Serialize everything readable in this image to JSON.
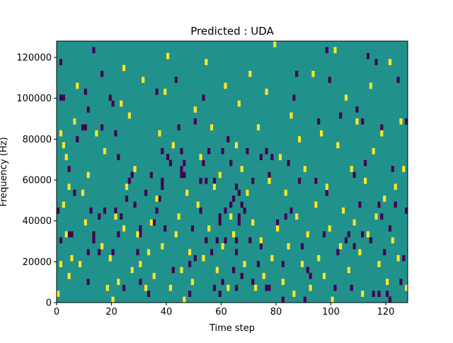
{
  "chart_data": {
    "type": "heatmap",
    "title": "Predicted : UDA",
    "xlabel": "Time step",
    "ylabel": "Frequency (Hz)",
    "xlim": [
      0,
      128
    ],
    "ylim": [
      0,
      128000
    ],
    "xticks": [
      0,
      20,
      40,
      60,
      80,
      100,
      120
    ],
    "yticks": [
      0,
      20000,
      40000,
      60000,
      80000,
      100000,
      120000
    ],
    "xtick_labels": [
      "0",
      "20",
      "40",
      "60",
      "80",
      "100",
      "120"
    ],
    "ytick_labels": [
      "0",
      "20000",
      "40000",
      "60000",
      "80000",
      "100000",
      "120000"
    ],
    "grid": false,
    "n_time_steps": 128,
    "n_freq_bins": 44,
    "freq_bin_width_hz": 2909,
    "colors": {
      "background_class": "#21918c",
      "low_class": "#440154",
      "high_class": "#fde725"
    },
    "low_cells": [
      [
        0,
        15
      ],
      [
        1,
        10
      ],
      [
        1,
        34
      ],
      [
        1,
        40
      ],
      [
        2,
        34
      ],
      [
        4,
        11
      ],
      [
        4,
        22
      ],
      [
        5,
        11
      ],
      [
        6,
        18
      ],
      [
        7,
        27
      ],
      [
        9,
        29
      ],
      [
        10,
        29
      ],
      [
        10,
        35
      ],
      [
        11,
        3
      ],
      [
        11,
        8
      ],
      [
        11,
        32
      ],
      [
        12,
        15
      ],
      [
        13,
        10
      ],
      [
        13,
        11
      ],
      [
        13,
        42
      ],
      [
        15,
        8
      ],
      [
        15,
        14
      ],
      [
        16,
        29
      ],
      [
        16,
        38
      ],
      [
        17,
        15
      ],
      [
        19,
        34
      ],
      [
        20,
        8
      ],
      [
        20,
        33
      ],
      [
        21,
        15
      ],
      [
        21,
        28
      ],
      [
        22,
        11
      ],
      [
        22,
        24
      ],
      [
        23,
        14
      ],
      [
        24,
        2
      ],
      [
        25,
        17
      ],
      [
        26,
        20
      ],
      [
        27,
        21
      ],
      [
        28,
        16
      ],
      [
        29,
        8
      ],
      [
        30,
        3
      ],
      [
        30,
        11
      ],
      [
        30,
        12
      ],
      [
        32,
        18
      ],
      [
        33,
        1
      ],
      [
        34,
        21
      ],
      [
        35,
        13
      ],
      [
        36,
        15
      ],
      [
        36,
        35
      ],
      [
        37,
        17
      ],
      [
        38,
        19
      ],
      [
        38,
        20
      ],
      [
        38,
        25
      ],
      [
        39,
        12
      ],
      [
        40,
        24
      ],
      [
        41,
        23
      ],
      [
        42,
        5
      ],
      [
        43,
        37
      ],
      [
        44,
        29
      ],
      [
        45,
        21
      ],
      [
        45,
        22
      ],
      [
        45,
        25
      ],
      [
        46,
        21
      ],
      [
        46,
        23
      ],
      [
        48,
        1
      ],
      [
        48,
        6
      ],
      [
        49,
        12
      ],
      [
        50,
        7
      ],
      [
        50,
        30
      ],
      [
        52,
        15
      ],
      [
        52,
        20
      ],
      [
        53,
        23
      ],
      [
        53,
        34
      ],
      [
        54,
        10
      ],
      [
        54,
        20
      ],
      [
        55,
        25
      ],
      [
        56,
        8
      ],
      [
        57,
        2
      ],
      [
        57,
        20
      ],
      [
        58,
        10
      ],
      [
        59,
        1
      ],
      [
        59,
        13
      ],
      [
        59,
        14
      ],
      [
        60,
        3
      ],
      [
        60,
        25
      ],
      [
        61,
        10
      ],
      [
        61,
        15
      ],
      [
        62,
        27
      ],
      [
        63,
        16
      ],
      [
        63,
        23
      ],
      [
        64,
        5
      ],
      [
        64,
        17
      ],
      [
        65,
        2
      ],
      [
        65,
        8
      ],
      [
        65,
        10
      ],
      [
        65,
        19
      ],
      [
        66,
        13
      ],
      [
        66,
        14
      ],
      [
        66,
        18
      ],
      [
        67,
        4
      ],
      [
        67,
        16
      ],
      [
        68,
        15
      ],
      [
        69,
        25
      ],
      [
        70,
        10
      ],
      [
        71,
        3
      ],
      [
        71,
        20
      ],
      [
        73,
        6
      ],
      [
        74,
        9
      ],
      [
        74,
        24
      ],
      [
        76,
        2
      ],
      [
        76,
        25
      ],
      [
        77,
        2
      ],
      [
        77,
        21
      ],
      [
        78,
        24
      ],
      [
        80,
        13
      ],
      [
        82,
        0
      ],
      [
        82,
        6
      ],
      [
        83,
        14
      ],
      [
        84,
        23
      ],
      [
        85,
        15
      ],
      [
        86,
        34
      ],
      [
        87,
        38
      ],
      [
        88,
        20
      ],
      [
        89,
        9
      ],
      [
        90,
        0
      ],
      [
        91,
        5
      ],
      [
        92,
        4
      ],
      [
        94,
        20
      ],
      [
        95,
        30
      ],
      [
        97,
        11
      ],
      [
        98,
        18
      ],
      [
        98,
        42
      ],
      [
        99,
        37
      ],
      [
        101,
        2
      ],
      [
        102,
        8
      ],
      [
        103,
        31
      ],
      [
        105,
        10
      ],
      [
        106,
        11
      ],
      [
        107,
        2
      ],
      [
        108,
        9
      ],
      [
        108,
        21
      ],
      [
        109,
        32
      ],
      [
        110,
        16
      ],
      [
        111,
        11
      ],
      [
        111,
        30
      ],
      [
        112,
        23
      ],
      [
        113,
        41
      ],
      [
        114,
        10
      ],
      [
        115,
        1
      ],
      [
        116,
        40
      ],
      [
        117,
        1
      ],
      [
        117,
        16
      ],
      [
        118,
        14
      ],
      [
        118,
        29
      ],
      [
        119,
        8
      ],
      [
        120,
        1
      ],
      [
        121,
        0
      ],
      [
        121,
        12
      ],
      [
        122,
        22
      ],
      [
        123,
        16
      ],
      [
        124,
        37
      ],
      [
        125,
        3
      ],
      [
        126,
        7
      ],
      [
        127,
        15
      ],
      [
        127,
        30
      ]
    ],
    "high_cells": [
      [
        0,
        1
      ],
      [
        1,
        6
      ],
      [
        1,
        28
      ],
      [
        2,
        26
      ],
      [
        2,
        16
      ],
      [
        3,
        24
      ],
      [
        3,
        11
      ],
      [
        4,
        4
      ],
      [
        4,
        19
      ],
      [
        5,
        7
      ],
      [
        6,
        30
      ],
      [
        7,
        36
      ],
      [
        8,
        6
      ],
      [
        9,
        18
      ],
      [
        10,
        13
      ],
      [
        11,
        21
      ],
      [
        14,
        28
      ],
      [
        16,
        9
      ],
      [
        17,
        25
      ],
      [
        18,
        2
      ],
      [
        19,
        7
      ],
      [
        20,
        0
      ],
      [
        21,
        14
      ],
      [
        22,
        3
      ],
      [
        23,
        33
      ],
      [
        24,
        12
      ],
      [
        24,
        39
      ],
      [
        25,
        19
      ],
      [
        26,
        31
      ],
      [
        27,
        5
      ],
      [
        28,
        22
      ],
      [
        29,
        11
      ],
      [
        30,
        6
      ],
      [
        31,
        37
      ],
      [
        32,
        2
      ],
      [
        33,
        8
      ],
      [
        34,
        13
      ],
      [
        35,
        4
      ],
      [
        36,
        17
      ],
      [
        37,
        28
      ],
      [
        38,
        9
      ],
      [
        39,
        35
      ],
      [
        40,
        41
      ],
      [
        41,
        2
      ],
      [
        42,
        26
      ],
      [
        43,
        11
      ],
      [
        44,
        14
      ],
      [
        45,
        5
      ],
      [
        46,
        0
      ],
      [
        47,
        18
      ],
      [
        48,
        8
      ],
      [
        49,
        3
      ],
      [
        50,
        32
      ],
      [
        51,
        16
      ],
      [
        52,
        24
      ],
      [
        53,
        7
      ],
      [
        54,
        40
      ],
      [
        55,
        12
      ],
      [
        56,
        29
      ],
      [
        57,
        19
      ],
      [
        58,
        5
      ],
      [
        59,
        21
      ],
      [
        60,
        9
      ],
      [
        61,
        36
      ],
      [
        62,
        2
      ],
      [
        63,
        14
      ],
      [
        64,
        11
      ],
      [
        65,
        26
      ],
      [
        66,
        33
      ],
      [
        67,
        22
      ],
      [
        68,
        6
      ],
      [
        69,
        18
      ],
      [
        70,
        38
      ],
      [
        71,
        13
      ],
      [
        72,
        2
      ],
      [
        73,
        29
      ],
      [
        74,
        10
      ],
      [
        75,
        4
      ],
      [
        76,
        35
      ],
      [
        77,
        20
      ],
      [
        78,
        7
      ],
      [
        79,
        43
      ],
      [
        80,
        12
      ],
      [
        81,
        24
      ],
      [
        82,
        3
      ],
      [
        83,
        18
      ],
      [
        84,
        9
      ],
      [
        85,
        31
      ],
      [
        86,
        1
      ],
      [
        87,
        14
      ],
      [
        88,
        27
      ],
      [
        89,
        6
      ],
      [
        90,
        22
      ],
      [
        91,
        11
      ],
      [
        92,
        2
      ],
      [
        93,
        38
      ],
      [
        94,
        16
      ],
      [
        95,
        7
      ],
      [
        96,
        28
      ],
      [
        97,
        4
      ],
      [
        98,
        19
      ],
      [
        99,
        12
      ],
      [
        100,
        0
      ],
      [
        101,
        42
      ],
      [
        102,
        26
      ],
      [
        103,
        9
      ],
      [
        104,
        15
      ],
      [
        105,
        34
      ],
      [
        106,
        5
      ],
      [
        107,
        22
      ],
      [
        108,
        13
      ],
      [
        109,
        30
      ],
      [
        110,
        8
      ],
      [
        111,
        1
      ],
      [
        112,
        20
      ],
      [
        113,
        11
      ],
      [
        114,
        36
      ],
      [
        115,
        25
      ],
      [
        116,
        14
      ],
      [
        117,
        6
      ],
      [
        118,
        28
      ],
      [
        119,
        17
      ],
      [
        120,
        3
      ],
      [
        121,
        40
      ],
      [
        122,
        10
      ],
      [
        123,
        19
      ],
      [
        124,
        7
      ],
      [
        125,
        30
      ],
      [
        126,
        22
      ],
      [
        127,
        2
      ]
    ]
  }
}
